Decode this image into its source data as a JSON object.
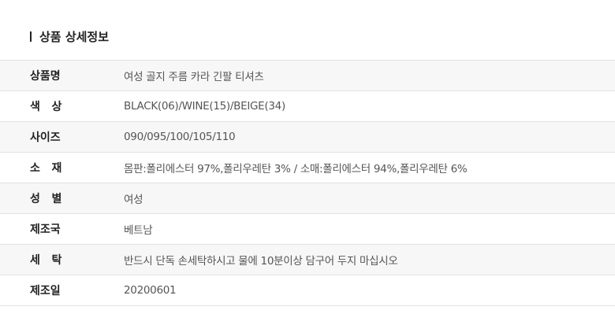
{
  "title": "상품 상세정보",
  "rows": [
    {
      "label": "상품명",
      "value": "여성 골지 주름 카라 긴팔 티셔츠"
    },
    {
      "label": "색   상",
      "value": "BLACK(06)/WINE(15)/BEIGE(34)"
    },
    {
      "label": "사이즈",
      "value": "090/095/100/105/110"
    },
    {
      "label": "소   재",
      "value": "몸판:폴리에스터 97%,폴리우레탄 3% / 소매:폴리에스터 94%,폴리우레탄 6%"
    },
    {
      "label": "성   별",
      "value": "여성"
    },
    {
      "label": "제조국",
      "value": "베트남"
    },
    {
      "label": "세   탁",
      "value": "반드시 단독 손세탁하시고 물에 10분이상 담구어 두지 마십시오"
    },
    {
      "label": "제조일",
      "value": "20200601"
    }
  ]
}
